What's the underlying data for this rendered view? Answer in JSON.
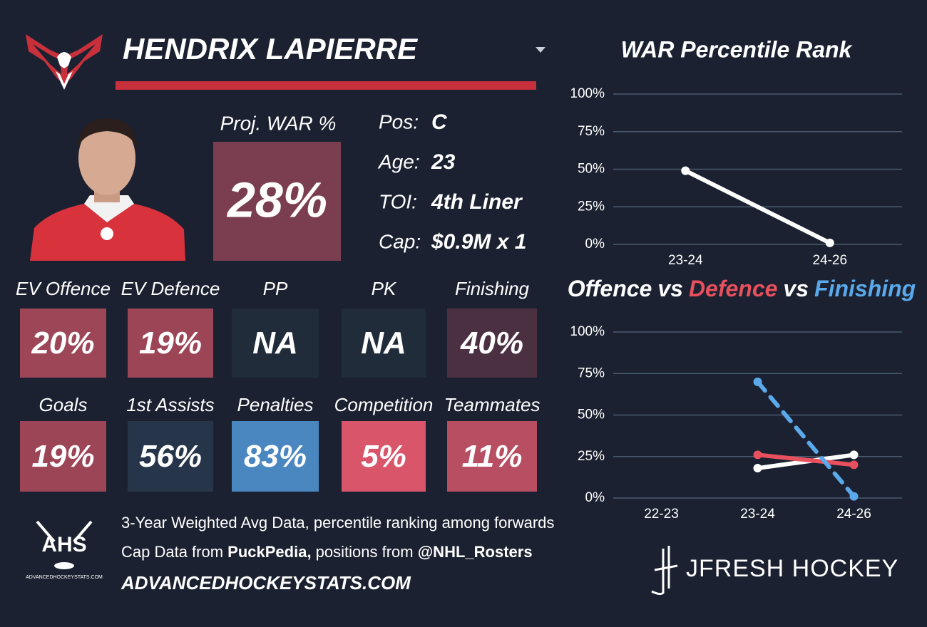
{
  "player": {
    "name": "HENDRIX LAPIERRE"
  },
  "proj_war": {
    "label": "Proj. WAR %",
    "value": "28%",
    "color": "#7b3e50"
  },
  "info": [
    {
      "label": "Pos:",
      "value": "C"
    },
    {
      "label": "Age:",
      "value": "23"
    },
    {
      "label": "TOI:",
      "value": "4th Liner"
    },
    {
      "label": "Cap:",
      "value": "$0.9M x 1"
    }
  ],
  "tiles": [
    {
      "label": "EV Offence",
      "value": "20%",
      "color": "#9d4658"
    },
    {
      "label": "EV Defence",
      "value": "19%",
      "color": "#9c4557"
    },
    {
      "label": "PP",
      "value": "NA",
      "color": "#212c3b"
    },
    {
      "label": "PK",
      "value": "NA",
      "color": "#212c3b"
    },
    {
      "label": "Finishing",
      "value": "40%",
      "color": "#4b3042"
    },
    {
      "label": "Goals",
      "value": "19%",
      "color": "#9c4557"
    },
    {
      "label": "1st Assists",
      "value": "56%",
      "color": "#27354b"
    },
    {
      "label": "Penalties",
      "value": "83%",
      "color": "#4a86bf"
    },
    {
      "label": "Competition",
      "value": "5%",
      "color": "#d9566a"
    },
    {
      "label": "Teammates",
      "value": "11%",
      "color": "#b84e61"
    }
  ],
  "footer": {
    "logo": "AHS",
    "logo_sub": "ADVANCEDHOCKEYSTATS.COM",
    "line1": "3-Year Weighted Avg Data, percentile ranking among forwards",
    "line2": [
      {
        "text": "Cap Data from ",
        "bold": false
      },
      {
        "text": "PuckPedia,",
        "bold": true
      },
      {
        "text": " positions from ",
        "bold": false
      },
      {
        "text": "@NHL_Rosters",
        "bold": true
      }
    ],
    "website": "ADVANCEDHOCKEYSTATS.COM",
    "brand": "JFRESH HOCKEY"
  },
  "chart_data": [
    {
      "type": "line",
      "title": "WAR Percentile Rank",
      "categories": [
        "23-24",
        "24-26"
      ],
      "series": [
        {
          "color": "#ffffff",
          "values": [
            49,
            1
          ]
        }
      ],
      "ylim": [
        0,
        100
      ],
      "yticks": [
        {
          "value": 0,
          "label": "0%"
        },
        {
          "value": 25,
          "label": "25%"
        },
        {
          "value": 50,
          "label": "50%"
        },
        {
          "value": 75,
          "label": "75%"
        },
        {
          "value": 100,
          "label": "100%"
        }
      ],
      "grid": true
    },
    {
      "type": "line",
      "title_joiner": "vs",
      "categories": [
        "22-23",
        "23-24",
        "24-26"
      ],
      "series": [
        {
          "name": "Offence",
          "color": "#ffffff",
          "values": [
            null,
            18,
            26
          ]
        },
        {
          "name": "Defence",
          "color": "#e8505e",
          "values": [
            null,
            26,
            20
          ]
        },
        {
          "name": "Finishing",
          "color": "#5aa9ea",
          "dashed": true,
          "values": [
            null,
            70,
            1
          ]
        }
      ],
      "ylim": [
        0,
        100
      ],
      "yticks": [
        {
          "value": 0,
          "label": "0%"
        },
        {
          "value": 25,
          "label": "25%"
        },
        {
          "value": 50,
          "label": "50%"
        },
        {
          "value": 75,
          "label": "75%"
        },
        {
          "value": 100,
          "label": "100%"
        }
      ],
      "grid": true
    }
  ]
}
